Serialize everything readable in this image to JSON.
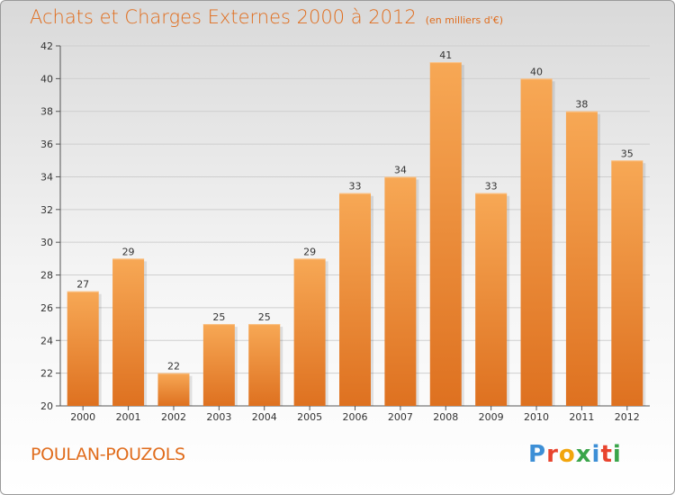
{
  "header": {
    "title": "Achats et Charges Externes 2000 à 2012",
    "unit": "(en milliers d'€)"
  },
  "footer": {
    "commune": "POULAN-POUZOLS",
    "logo": "Proxiti"
  },
  "colors": {
    "accent": "#e06c1c",
    "bar_top": "#f7a855",
    "bar_bottom": "#de7120",
    "logo_letters": [
      "#3d8fd6",
      "#e8442e",
      "#f2a50c",
      "#3aa54a",
      "#3d8fd6",
      "#e8442e",
      "#3aa54a"
    ]
  },
  "chart_data": {
    "type": "bar",
    "title": "Achats et Charges Externes 2000 à 2012",
    "subtitle": "(en milliers d'€)",
    "categories": [
      "2000",
      "2001",
      "2002",
      "2003",
      "2004",
      "2005",
      "2006",
      "2007",
      "2008",
      "2009",
      "2010",
      "2011",
      "2012"
    ],
    "values": [
      27,
      29,
      22,
      25,
      25,
      29,
      33,
      34,
      41,
      33,
      40,
      38,
      35
    ],
    "ylim": [
      20,
      42
    ],
    "yticks": [
      20,
      22,
      24,
      26,
      28,
      30,
      32,
      34,
      36,
      38,
      40,
      42
    ],
    "grid": true,
    "data_labels": true
  }
}
